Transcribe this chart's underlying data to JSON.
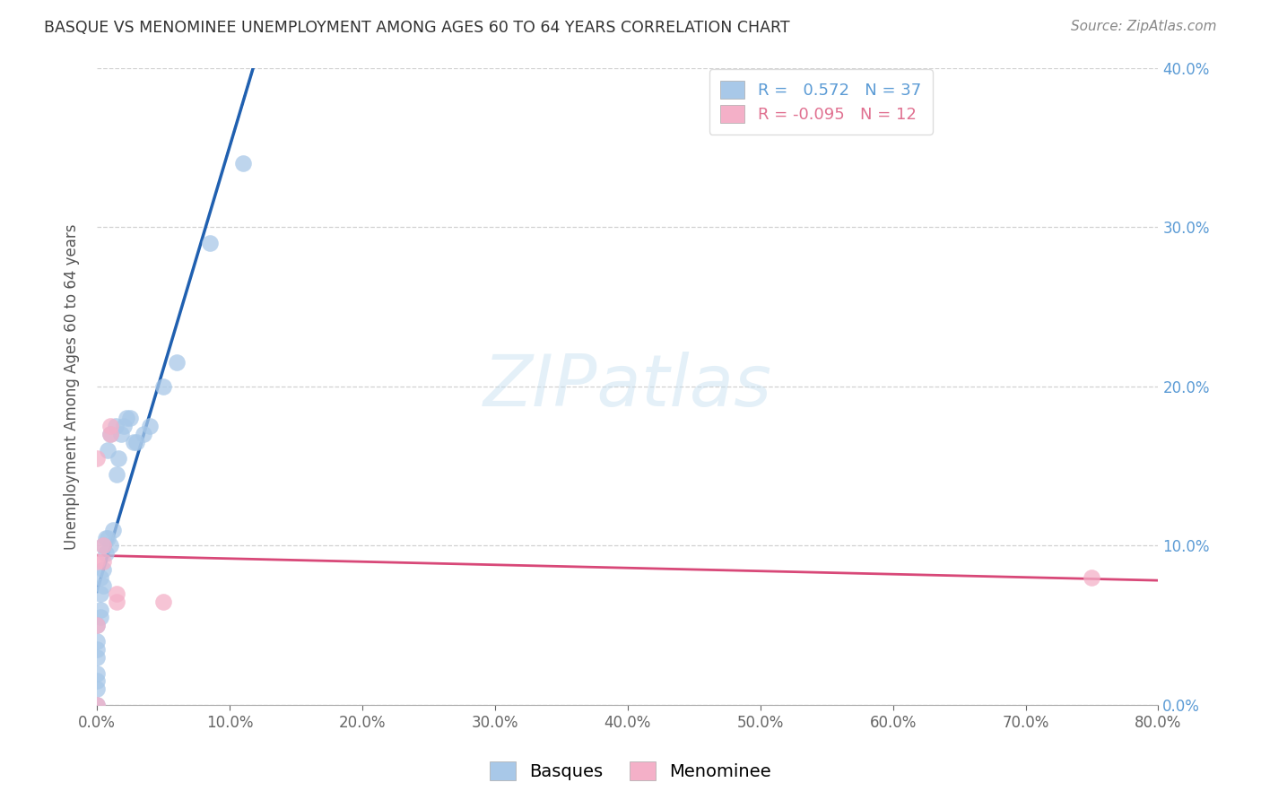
{
  "title": "BASQUE VS MENOMINEE UNEMPLOYMENT AMONG AGES 60 TO 64 YEARS CORRELATION CHART",
  "source": "Source: ZipAtlas.com",
  "ylabel": "Unemployment Among Ages 60 to 64 years",
  "xlim": [
    0.0,
    0.8
  ],
  "ylim": [
    0.0,
    0.4
  ],
  "xticks": [
    0.0,
    0.1,
    0.2,
    0.3,
    0.4,
    0.5,
    0.6,
    0.7,
    0.8
  ],
  "yticks": [
    0.0,
    0.1,
    0.2,
    0.3,
    0.4
  ],
  "basques_R": 0.572,
  "basques_N": 37,
  "menominee_R": -0.095,
  "menominee_N": 12,
  "basques_color": "#a8c8e8",
  "menominee_color": "#f4b0c8",
  "basques_line_color": "#2060b0",
  "menominee_line_color": "#d84878",
  "basques_x": [
    0.0,
    0.0,
    0.0,
    0.0,
    0.0,
    0.0,
    0.0,
    0.0,
    0.003,
    0.003,
    0.003,
    0.003,
    0.005,
    0.005,
    0.005,
    0.007,
    0.007,
    0.008,
    0.008,
    0.01,
    0.01,
    0.012,
    0.014,
    0.015,
    0.016,
    0.018,
    0.02,
    0.022,
    0.025,
    0.028,
    0.03,
    0.035,
    0.04,
    0.05,
    0.06,
    0.085,
    0.11
  ],
  "basques_y": [
    0.0,
    0.01,
    0.015,
    0.02,
    0.03,
    0.035,
    0.04,
    0.05,
    0.055,
    0.06,
    0.07,
    0.08,
    0.075,
    0.085,
    0.1,
    0.095,
    0.105,
    0.105,
    0.16,
    0.1,
    0.17,
    0.11,
    0.175,
    0.145,
    0.155,
    0.17,
    0.175,
    0.18,
    0.18,
    0.165,
    0.165,
    0.17,
    0.175,
    0.2,
    0.215,
    0.29,
    0.34
  ],
  "menominee_x": [
    0.0,
    0.0,
    0.0,
    0.0,
    0.005,
    0.005,
    0.01,
    0.01,
    0.015,
    0.015,
    0.05,
    0.75
  ],
  "menominee_y": [
    0.0,
    0.05,
    0.09,
    0.155,
    0.09,
    0.1,
    0.17,
    0.175,
    0.065,
    0.07,
    0.065,
    0.08
  ],
  "legend_R_color": "#5b9bd5",
  "legend_R2_color": "#e07090",
  "right_axis_color": "#5b9bd5",
  "watermark_color": "#c5dff0"
}
